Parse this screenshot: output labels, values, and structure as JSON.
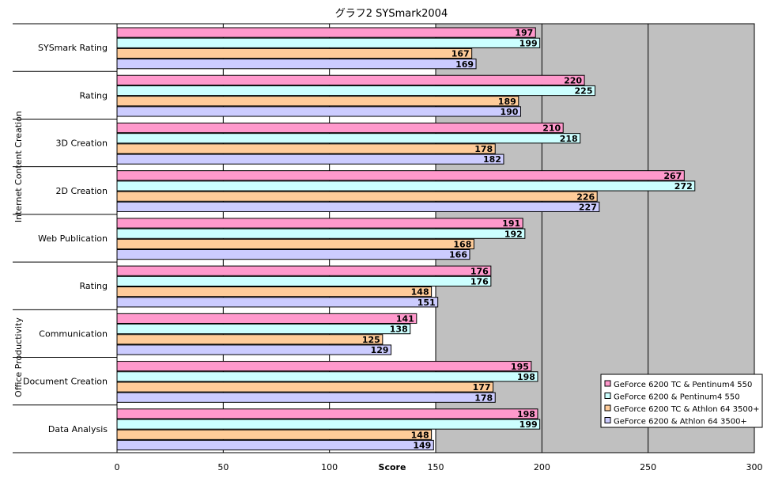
{
  "chart_data": {
    "type": "bar",
    "orientation": "horizontal",
    "title": "グラフ2 SYSmark2004",
    "xlabel": "Score",
    "ylabel": "",
    "xlim": [
      0,
      300
    ],
    "xticks": [
      "0",
      "50",
      "100",
      "150",
      "200",
      "250",
      "300"
    ],
    "grid": true,
    "legend_position": "right",
    "groups": [
      {
        "label": "Internet Content Creation",
        "categories": [
          "Rating",
          "3D Creation",
          "2D Creation",
          "Web Publication"
        ]
      },
      {
        "label": "Office Productivity",
        "categories": [
          "Rating",
          "Communication",
          "Document Creation",
          "Data Analysis"
        ]
      }
    ],
    "categories": [
      "SYSmark Rating",
      "Rating",
      "3D Creation",
      "2D Creation",
      "Web Publication",
      "Rating",
      "Communication",
      "Document Creation",
      "Data Analysis"
    ],
    "series": [
      {
        "name": "GeForce 6200 TC & Pentinum4 550",
        "color": "#ff99cc",
        "values": [
          197,
          220,
          210,
          267,
          191,
          176,
          141,
          195,
          198
        ]
      },
      {
        "name": "GeForce 6200 & Pentinum4 550",
        "color": "#ccffff",
        "values": [
          199,
          225,
          218,
          272,
          192,
          176,
          138,
          198,
          199
        ]
      },
      {
        "name": "GeForce 6200 TC & Athlon 64 3500+",
        "color": "#ffcc99",
        "values": [
          167,
          189,
          178,
          226,
          168,
          148,
          125,
          177,
          148
        ]
      },
      {
        "name": "GeForce 6200 & Athlon 64 3500+",
        "color": "#ccccff",
        "values": [
          169,
          190,
          182,
          227,
          166,
          151,
          129,
          178,
          149
        ]
      }
    ],
    "plot_background": "#c0c0c0",
    "plot_band_light": "#ffffff"
  }
}
